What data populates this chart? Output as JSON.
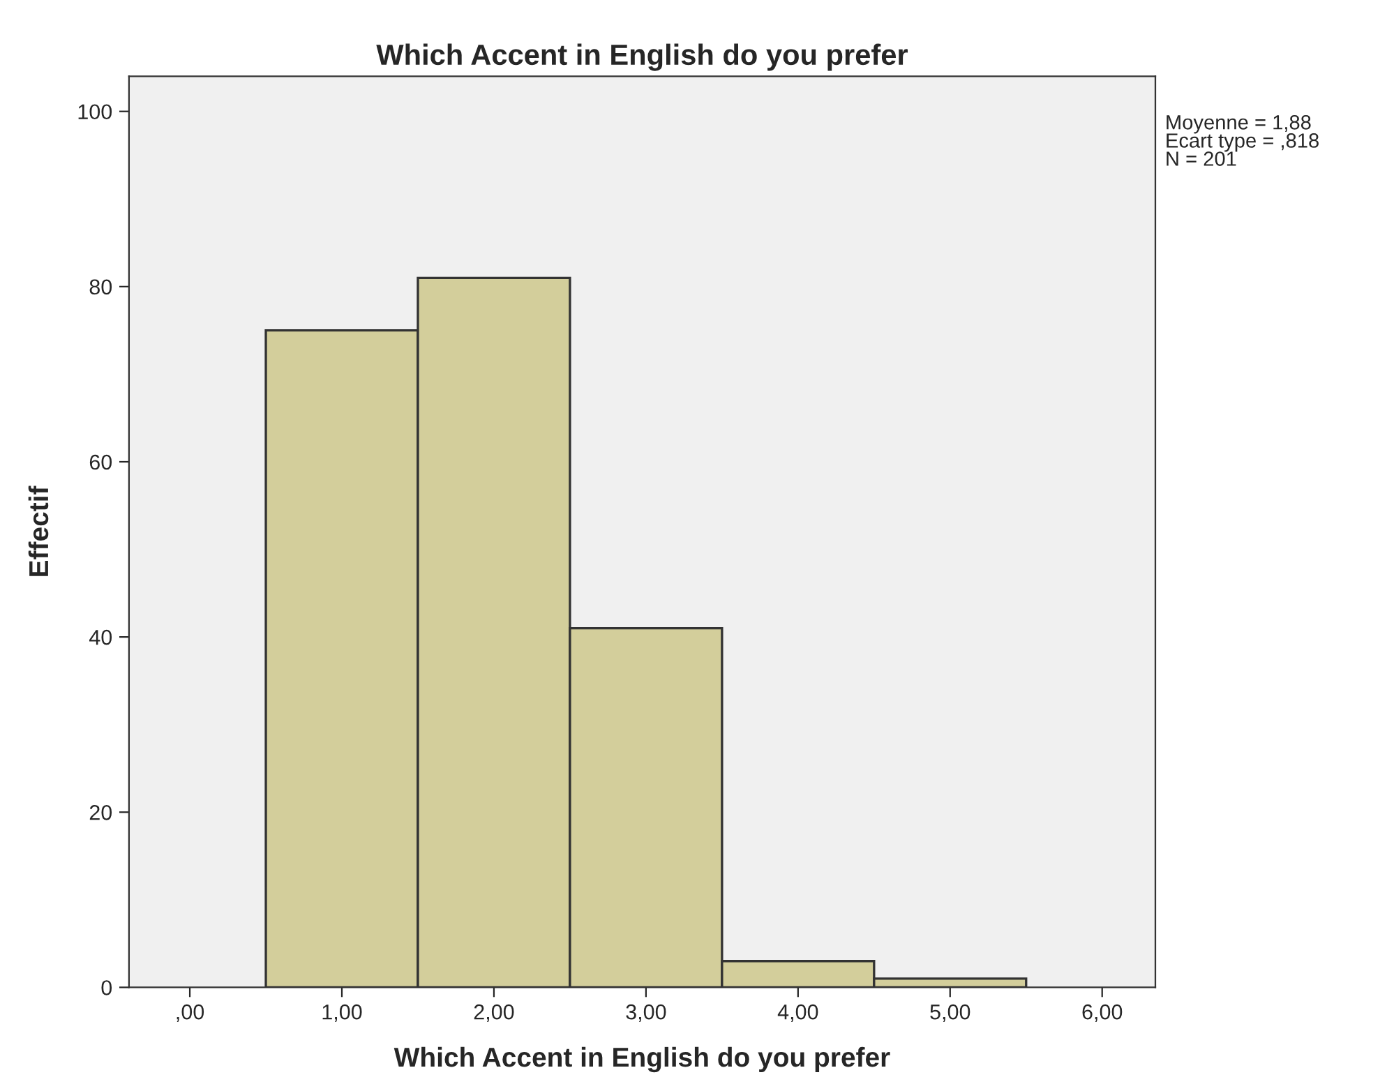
{
  "chart_data": {
    "type": "histogram",
    "title": "Which Accent in English do you prefer",
    "xlabel": "Which Accent in English do you prefer",
    "ylabel": "Effectif",
    "bins": [
      0.5,
      1.5,
      2.5,
      3.5,
      4.5,
      5.5
    ],
    "values": [
      75,
      81,
      41,
      3,
      1
    ],
    "color": "#d3ce9b",
    "xlim": [
      -0.4,
      6.35
    ],
    "xticks": [
      {
        "value": 0,
        "label": ",00"
      },
      {
        "value": 1,
        "label": "1,00"
      },
      {
        "value": 2,
        "label": "2,00"
      },
      {
        "value": 3,
        "label": "3,00"
      },
      {
        "value": 4,
        "label": "4,00"
      },
      {
        "value": 5,
        "label": "5,00"
      },
      {
        "value": 6,
        "label": "6,00"
      }
    ],
    "ylim": [
      0,
      104
    ],
    "yticks": [
      0,
      20,
      40,
      60,
      80,
      100
    ],
    "grid": false,
    "annotations": [
      "Moyenne = 1,88\nEcart type = ,818\nN = 201"
    ]
  }
}
